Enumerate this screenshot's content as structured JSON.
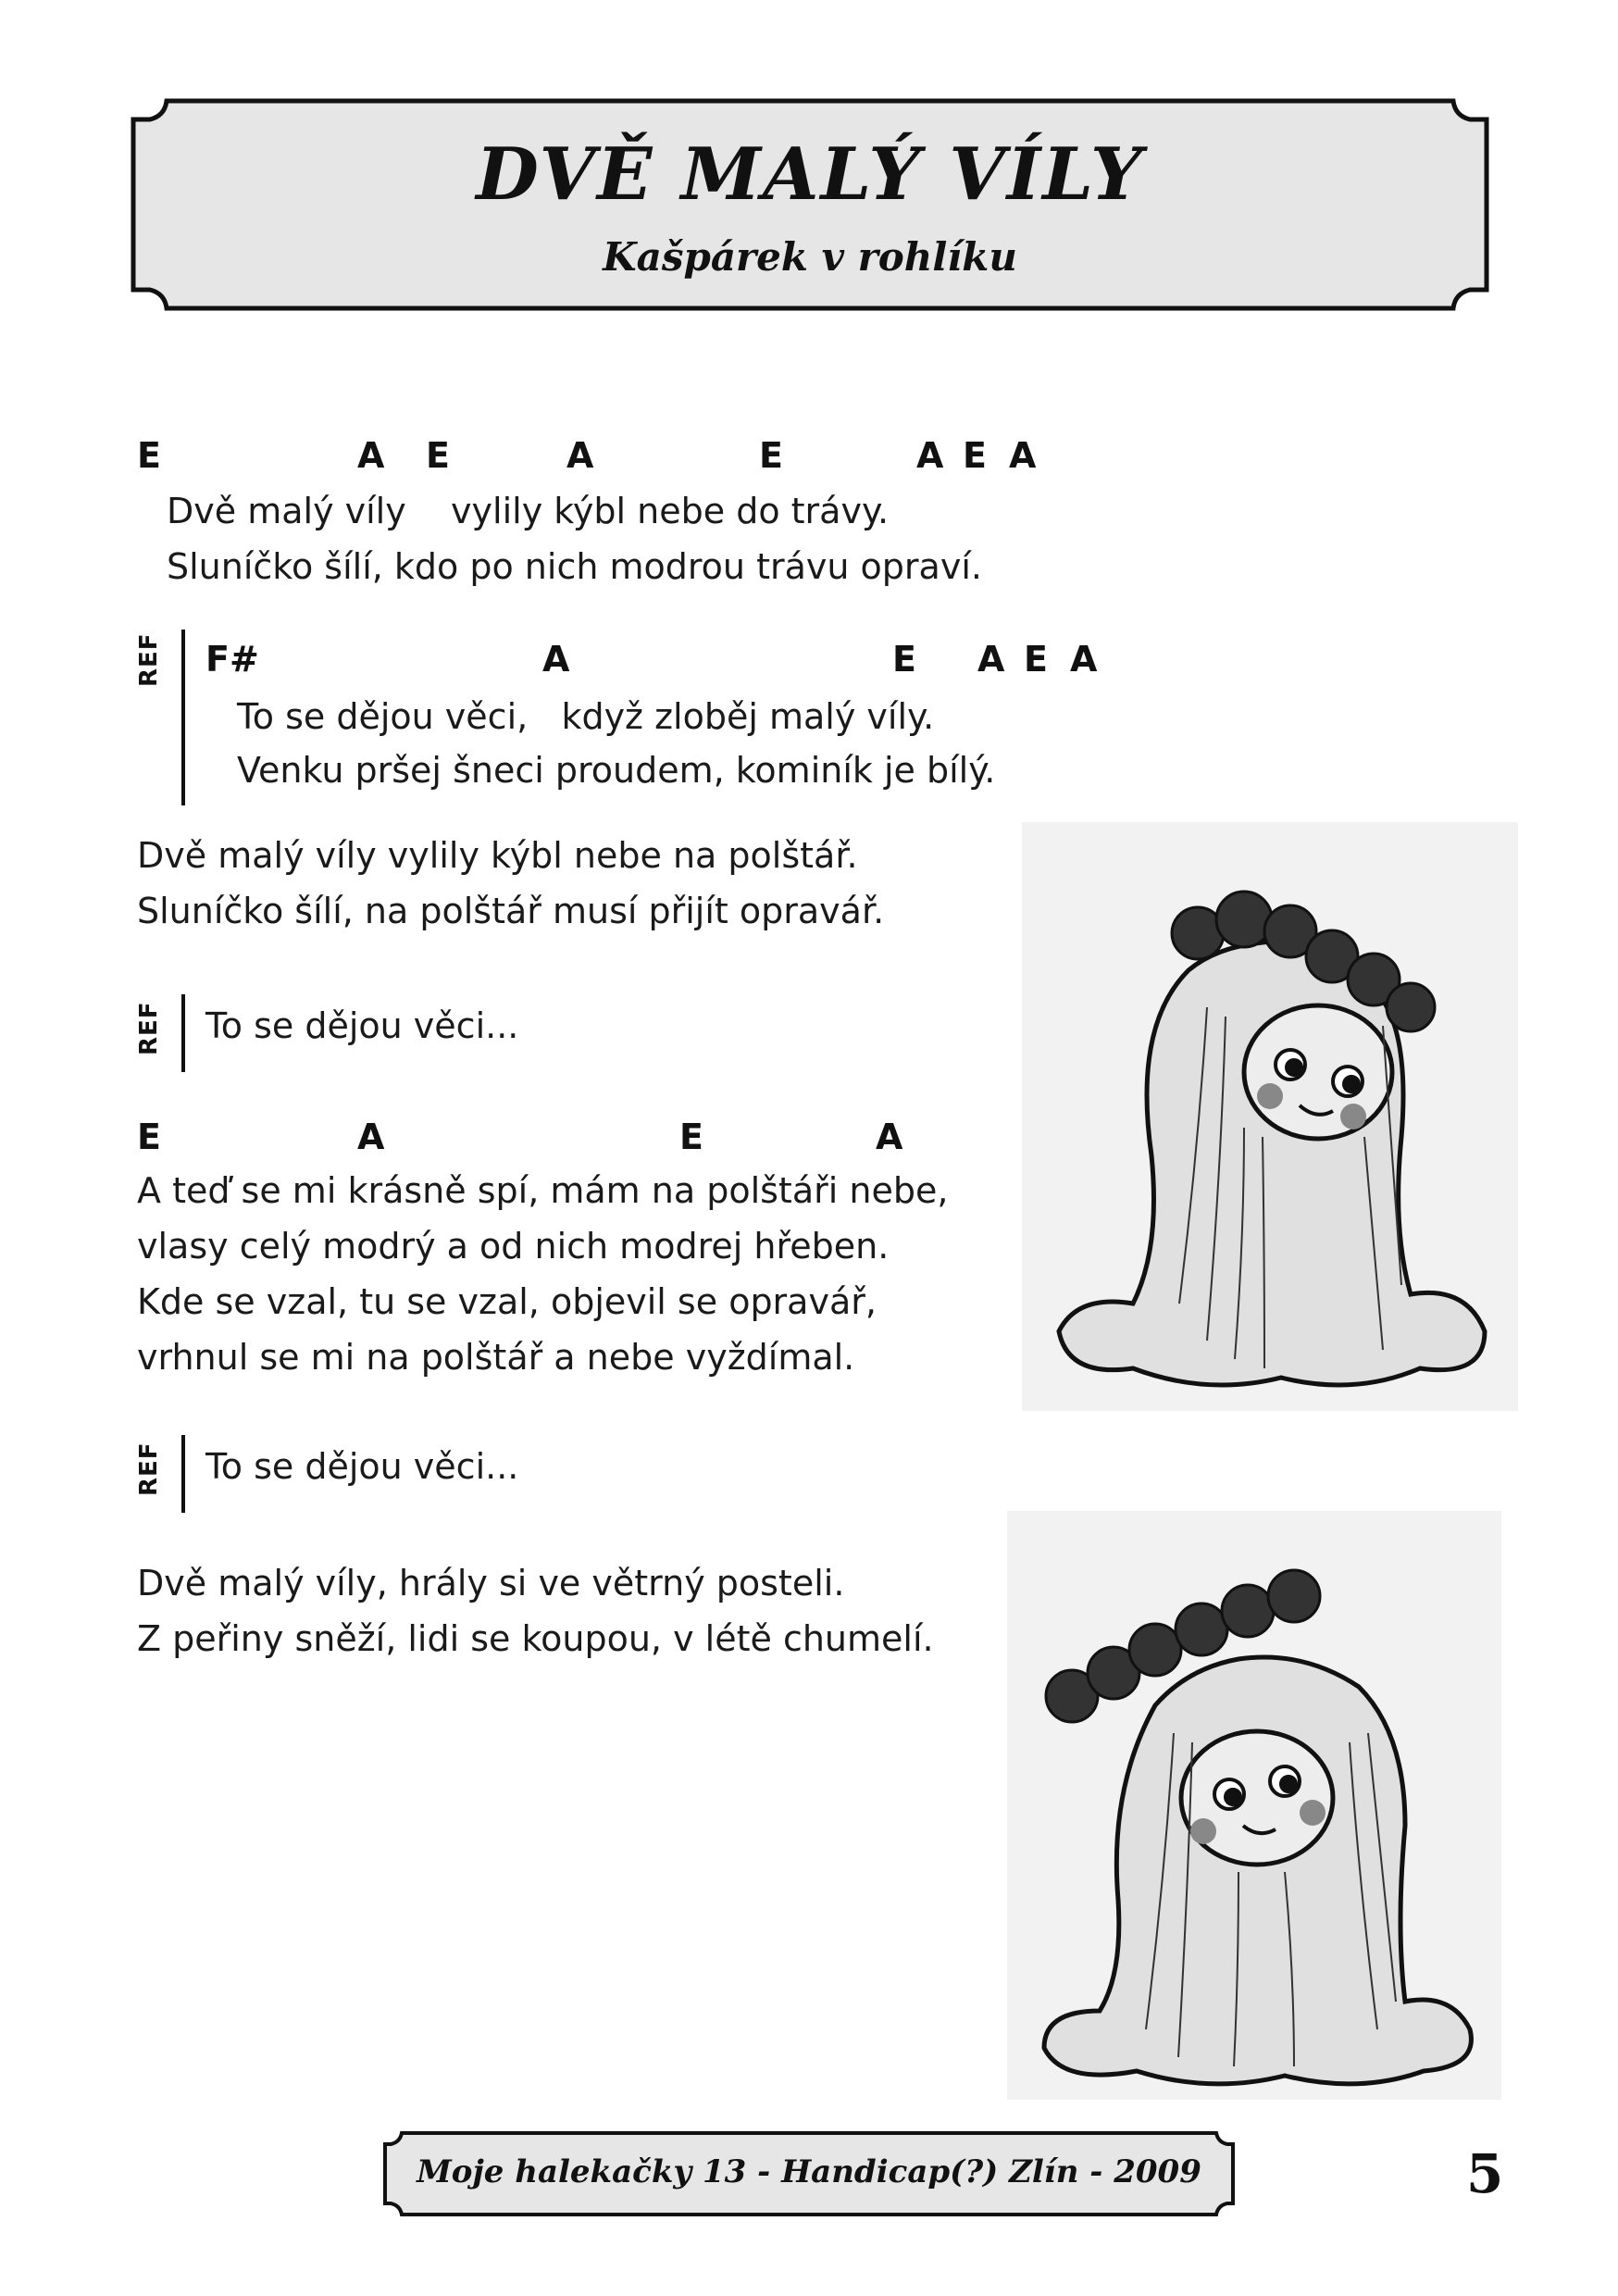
{
  "header": {
    "title": "DVĚ MALÝ VÍLY",
    "subtitle": "Kašpárek v rohlíku"
  },
  "verse1": {
    "chords": [
      "E",
      "A",
      "E",
      "A",
      "E",
      "A",
      "E",
      "A"
    ],
    "lines": [
      "Dvě malý víly    vylily kýbl nebe do trávy.",
      "Sluníčko šílí, kdo po nich modrou trávu opraví."
    ]
  },
  "refrain1": {
    "label": "REF",
    "chords": [
      "F#",
      "A",
      "E",
      "A",
      "E",
      "A"
    ],
    "lines": [
      "To se dějou věci,   když zloběj malý víly.",
      "Venku pršej šneci proudem, kominík je bílý."
    ]
  },
  "verse2": {
    "lines": [
      "Dvě malý víly vylily kýbl nebe na polštář.",
      "Sluníčko šílí, na polštář musí přijít opravář."
    ]
  },
  "refrain2": {
    "label": "REF",
    "text": "To se dějou věci..."
  },
  "verse3": {
    "chords": [
      "E",
      "A",
      "E",
      "A"
    ],
    "lines": [
      "A teď se mi krásně spí, mám na polštáři nebe,",
      "vlasy celý modrý a od nich modrej hřeben.",
      "Kde se vzal, tu se vzal, objevil se opravář,",
      "vrhnul se mi na polštář a nebe vyždímal."
    ]
  },
  "refrain3": {
    "label": "REF",
    "text": "To se dějou věci..."
  },
  "verse4": {
    "lines": [
      "Dvě malý víly, hrály si ve větrný posteli.",
      "Z peřiny sněží, lidi se koupou, v létě chumelí."
    ]
  },
  "footer": {
    "text": "Moje halekačky 13 - Handicap(?) Zlín - 2009",
    "page_number": "5"
  },
  "illustrations": [
    "fairy-illustration",
    "fairy-illustration"
  ],
  "colors": {
    "banner_fill": "#e6e6e6",
    "ink": "#111111"
  }
}
